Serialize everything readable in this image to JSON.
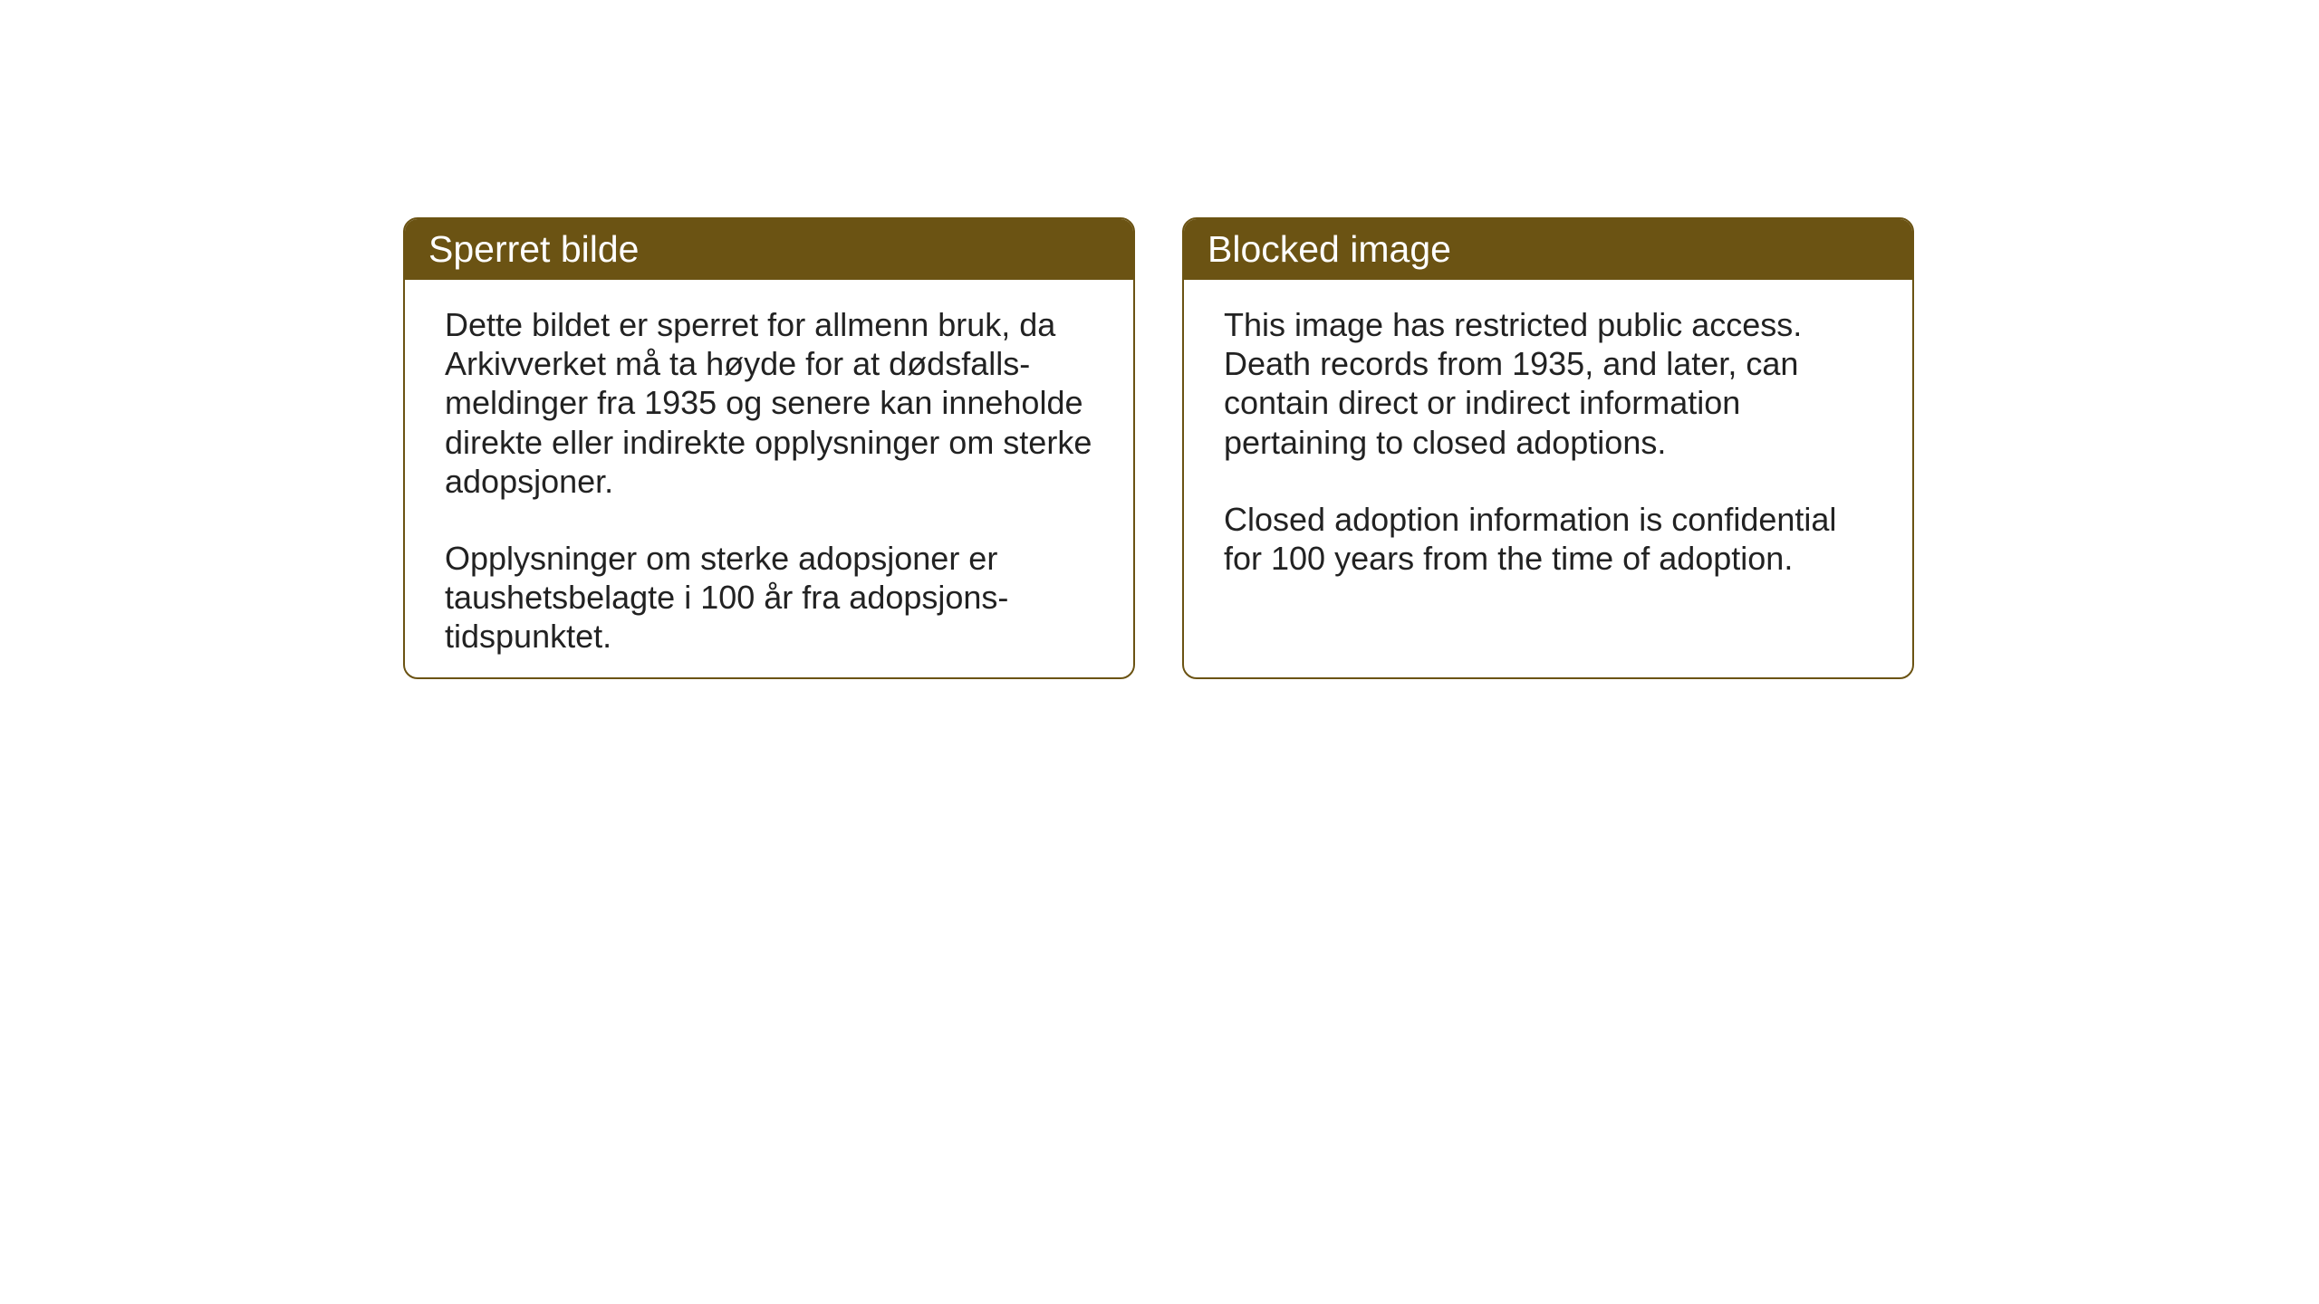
{
  "layout": {
    "background_color": "#ffffff",
    "card_border_color": "#6b5313",
    "card_header_bg_color": "#6b5313",
    "card_header_text_color": "#ffffff",
    "card_body_text_color": "#222222",
    "card_border_radius": 16,
    "header_fontsize": 41,
    "body_fontsize": 36
  },
  "cards": {
    "norwegian": {
      "title": "Sperret bilde",
      "paragraph1": "Dette bildet er sperret for allmenn bruk, da Arkivverket må ta høyde for at dødsfalls-meldinger fra 1935 og senere kan inneholde direkte eller indirekte opplysninger om sterke adopsjoner.",
      "paragraph2": "Opplysninger om sterke adopsjoner er taushetsbelagte i 100 år fra adopsjons-tidspunktet."
    },
    "english": {
      "title": "Blocked image",
      "paragraph1": "This image has restricted public access. Death records from 1935, and later, can contain direct or indirect information pertaining to closed adoptions.",
      "paragraph2": "Closed adoption information is confidential for 100 years from the time of adoption."
    }
  }
}
